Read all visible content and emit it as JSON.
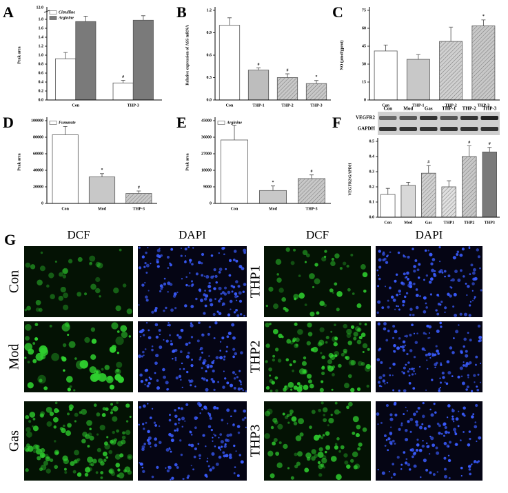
{
  "chart_data": [
    {
      "type": "bar",
      "panel": "A",
      "ylabel": "Peak area",
      "categories": [
        "Con",
        "THP-3"
      ],
      "ylim": [
        0,
        2.0
      ],
      "yticks": [
        {
          "value": 0,
          "label": "0.0"
        },
        0.2,
        0.4,
        0.6,
        0.8,
        {
          "value": 1,
          "label": "1.0"
        },
        1.2,
        1.4,
        1.6,
        1.8
      ],
      "axis_break_label": "12.0",
      "series": [
        {
          "name": "Citrulline",
          "color": "#ffffff",
          "values": [
            0.92,
            0.38
          ],
          "errors": [
            0.14,
            0.06
          ],
          "marks": [
            null,
            "#"
          ]
        },
        {
          "name": "Arginine",
          "color": "#7a7a7a",
          "values": [
            1.75,
            1.78
          ],
          "errors": [
            0.12,
            0.1
          ],
          "marks": [
            null,
            null
          ]
        }
      ]
    },
    {
      "type": "bar",
      "panel": "B",
      "ylabel": "Relative expression of ASS mRNA",
      "categories": [
        "Con",
        "THP-1",
        "THP-2",
        "THP-3"
      ],
      "ylim": [
        0,
        1.2
      ],
      "yticks": [
        {
          "value": 0,
          "label": "0.0"
        },
        0.3,
        0.6,
        0.9,
        1.2
      ],
      "series": [
        {
          "colors": [
            "#ffffff",
            "#bdbdbd",
            "#c8c8c8",
            "#c8c8c8"
          ],
          "hatch": [
            false,
            false,
            true,
            true
          ],
          "values": [
            1.0,
            0.4,
            0.3,
            0.22
          ],
          "errors": [
            0.1,
            0.03,
            0.05,
            0.04
          ],
          "marks": [
            null,
            "#",
            "#",
            "*"
          ]
        }
      ]
    },
    {
      "type": "bar",
      "panel": "C",
      "ylabel": "NO (μmol/gprot)",
      "categories": [
        "Con",
        "THP-1",
        "THP-2",
        "THP-3"
      ],
      "ylim": [
        0,
        75
      ],
      "yticks": [
        0,
        15,
        30,
        45,
        60,
        75
      ],
      "series": [
        {
          "colors": [
            "#ffffff",
            "#c8c8c8",
            "#d0d0d0",
            "#c8c8c8"
          ],
          "hatch": [
            false,
            false,
            true,
            true
          ],
          "values": [
            41,
            34,
            49,
            62
          ],
          "errors": [
            5,
            4,
            12,
            5
          ],
          "marks": [
            null,
            null,
            null,
            "*"
          ]
        }
      ]
    },
    {
      "type": "bar",
      "panel": "D",
      "ylabel": "Peak area",
      "categories": [
        "Con",
        "Mod",
        "THP-3"
      ],
      "ylim": [
        0,
        100000
      ],
      "yticks": [
        0,
        20000,
        40000,
        60000,
        80000,
        100000
      ],
      "series": [
        {
          "name": "Fumarate",
          "colors": [
            "#ffffff",
            "#c8c8c8",
            "#c8c8c8"
          ],
          "hatch": [
            false,
            false,
            true
          ],
          "values": [
            83000,
            32000,
            12000
          ],
          "errors": [
            10000,
            4000,
            3000
          ],
          "marks": [
            null,
            "*",
            "#"
          ]
        }
      ]
    },
    {
      "type": "bar",
      "panel": "E",
      "ylabel": "Peak area",
      "categories": [
        "Con",
        "Mod",
        "THP-3"
      ],
      "ylim": [
        0,
        45000
      ],
      "yticks": [
        0,
        9000,
        18000,
        27000,
        36000,
        45000
      ],
      "series": [
        {
          "name": "Arginine",
          "colors": [
            "#ffffff",
            "#c8c8c8",
            "#c8c8c8"
          ],
          "hatch": [
            false,
            false,
            true
          ],
          "values": [
            34500,
            7000,
            13500
          ],
          "errors": [
            8000,
            2500,
            2000
          ],
          "marks": [
            null,
            "*",
            "#"
          ]
        }
      ]
    },
    {
      "type": "bar",
      "panel": "F",
      "ylabel": "VEGFR2/GAPDH",
      "categories": [
        "Con",
        "Mod",
        "Gas",
        "THP1",
        "THP2",
        "THP3"
      ],
      "ylim": [
        0,
        0.5
      ],
      "yticks": [
        {
          "value": 0,
          "label": "0.0"
        },
        0.1,
        0.2,
        0.3,
        0.4,
        0.5
      ],
      "series": [
        {
          "colors": [
            "#ffffff",
            "#d8d8d8",
            "#d0d0d0",
            "#e0e0e0",
            "#c8c8c8",
            "#7a7a7a"
          ],
          "hatch": [
            false,
            false,
            true,
            true,
            true,
            false
          ],
          "values": [
            0.15,
            0.21,
            0.29,
            0.2,
            0.4,
            0.43
          ],
          "errors": [
            0.04,
            0.02,
            0.05,
            0.04,
            0.07,
            0.03
          ],
          "marks": [
            null,
            null,
            "#",
            null,
            "#",
            "#"
          ]
        }
      ]
    }
  ],
  "blot": {
    "lanes": [
      "Con",
      "Mod",
      "Gas",
      "THP-1",
      "THP-2",
      "THP-3"
    ],
    "bands": [
      "VEGFR2",
      "GAPDH"
    ]
  },
  "micrographs": {
    "panel": "G",
    "columns": [
      "DCF",
      "DAPI",
      "DCF",
      "DAPI"
    ],
    "rows_left": [
      "Con",
      "Mod",
      "Gas"
    ],
    "rows_right": [
      "THP1",
      "THP2",
      "THP3"
    ]
  }
}
